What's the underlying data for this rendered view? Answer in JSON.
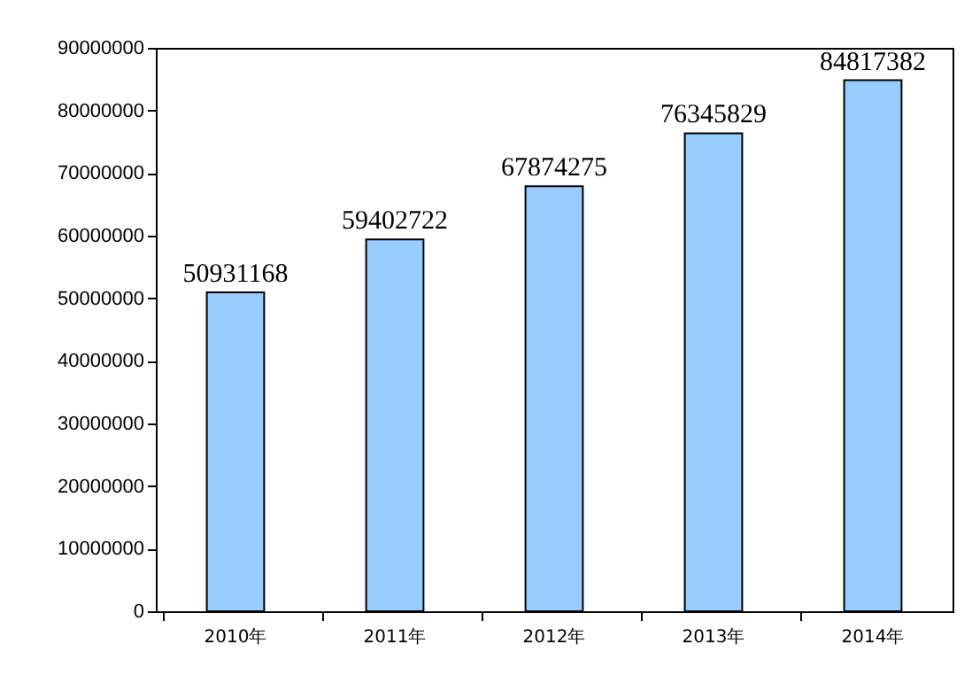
{
  "chart_data": {
    "type": "bar",
    "categories": [
      "2010年",
      "2011年",
      "2012年",
      "2013年",
      "2014年"
    ],
    "values": [
      50931168,
      59402722,
      67874275,
      76345829,
      84817382
    ],
    "color": "#99ccff",
    "ylim": [
      0,
      90000000
    ],
    "yticks": [
      0,
      10000000,
      20000000,
      30000000,
      40000000,
      50000000,
      60000000,
      70000000,
      80000000,
      90000000
    ],
    "data_labels": true,
    "grid": false
  }
}
